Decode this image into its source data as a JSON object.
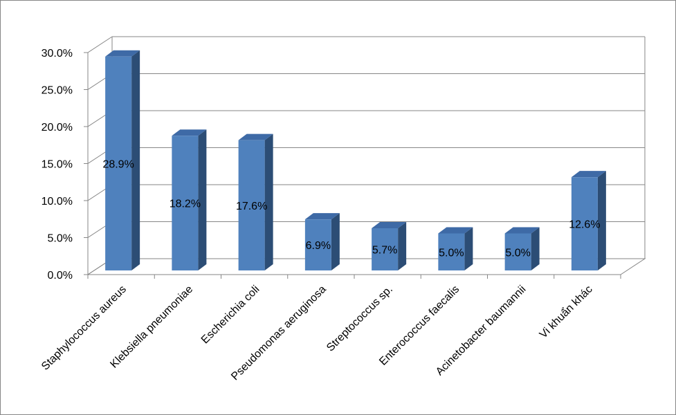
{
  "chart_data": {
    "type": "bar",
    "style": "3d-column",
    "categories": [
      "Staphylococcus aureus",
      "Klebsiella pneumoniae",
      "Escherichia coli",
      "Pseudomonas aeruginosa",
      "Streptococcus sp.",
      "Enterococcus faecalis",
      "Acinetobacter baumannii",
      "Vi khuẩn khác"
    ],
    "values": [
      28.9,
      18.2,
      17.6,
      6.9,
      5.7,
      5.0,
      5.0,
      12.6
    ],
    "data_labels": [
      "28.9%",
      "18.2%",
      "17.6%",
      "6.9%",
      "5.7%",
      "5.0%",
      "5.0%",
      "12.6%"
    ],
    "yticks": [
      "0.0%",
      "5.0%",
      "10.0%",
      "15.0%",
      "20.0%",
      "25.0%",
      "30.0%"
    ],
    "ylim": [
      0,
      30
    ],
    "title": "",
    "xlabel": "",
    "ylabel": "",
    "grid": true,
    "legend": "none",
    "colors": {
      "bar_front": "#4f81bd",
      "bar_top": "#3e6aa6",
      "bar_side": "#2c4d75",
      "gridline": "#868686",
      "wall": "#ffffff"
    }
  }
}
